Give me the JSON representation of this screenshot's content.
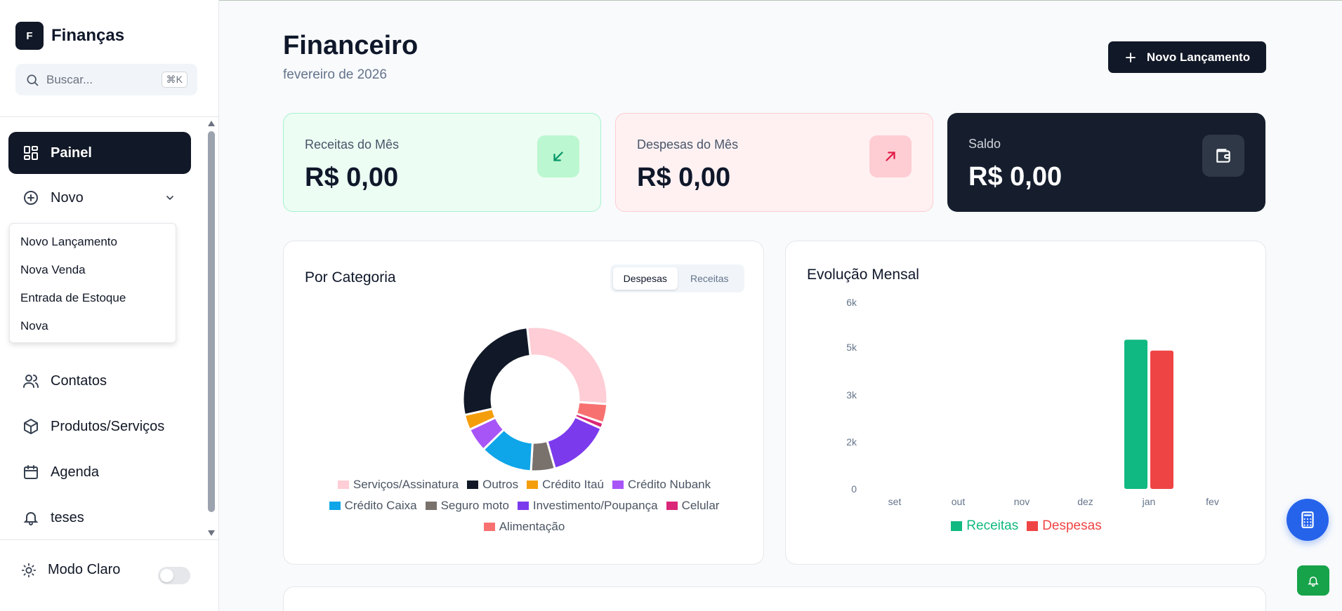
{
  "app": {
    "logo_letter": "F",
    "name": "Finanças"
  },
  "search": {
    "placeholder": "Buscar...",
    "shortcut": "⌘K"
  },
  "sidebar": {
    "items": [
      {
        "label": "Painel",
        "icon": "dashboard-icon",
        "active": true
      },
      {
        "label": "Novo",
        "icon": "plus-circle-icon",
        "expanded": true
      },
      {
        "label": "Contatos",
        "icon": "users-icon"
      },
      {
        "label": "Produtos/Serviços",
        "icon": "package-icon"
      },
      {
        "label": "Agenda",
        "icon": "calendar-icon"
      },
      {
        "label": "teses",
        "icon": "bell-icon"
      }
    ],
    "novo_menu": [
      "Novo Lançamento",
      "Nova Venda",
      "Entrada de Estoque",
      "Nova"
    ],
    "theme_label": "Modo Claro",
    "theme_toggle_on": false
  },
  "header": {
    "title": "Financeiro",
    "subtitle": "fevereiro de 2026",
    "new_button": "Novo Lançamento"
  },
  "cards": {
    "income": {
      "label": "Receitas do Mês",
      "value": "R$ 0,00",
      "icon": "arrow-down-left-icon",
      "color": "#059669"
    },
    "expense": {
      "label": "Despesas do Mês",
      "value": "R$ 0,00",
      "icon": "arrow-up-right-icon",
      "color": "#e11d48"
    },
    "balance": {
      "label": "Saldo",
      "value": "R$ 0,00",
      "icon": "wallet-icon"
    }
  },
  "category_panel": {
    "title": "Por Categoria",
    "tabs": [
      "Despesas",
      "Receitas"
    ],
    "active_tab": "Despesas"
  },
  "evolution_panel": {
    "title": "Evolução Mensal"
  },
  "chart_data": [
    {
      "type": "pie",
      "donut": true,
      "title": "Por Categoria",
      "slices": [
        {
          "label": "Serviços/Assinatura",
          "value": 26.0,
          "color": "#fecdd6"
        },
        {
          "label": "Alimentação",
          "value": 4.0,
          "color": "#f87171"
        },
        {
          "label": "Celular",
          "value": 1.2,
          "color": "#db2777"
        },
        {
          "label": "Investimento/Poupança",
          "value": 13.0,
          "color": "#7c3aed"
        },
        {
          "label": "Seguro moto",
          "value": 5.0,
          "color": "#78716c"
        },
        {
          "label": "Crédito Caixa",
          "value": 11.0,
          "color": "#0ea5e9"
        },
        {
          "label": "Crédito Nubank",
          "value": 5.0,
          "color": "#a855f7"
        },
        {
          "label": "Crédito Itaú",
          "value": 3.2,
          "color": "#f59e0b"
        },
        {
          "label": "Outros",
          "value": 25.0,
          "color": "#111827"
        }
      ],
      "legend_rows": [
        [
          "Serviços/Assinatura",
          "Outros",
          "Crédito Itaú",
          "Crédito Nubank"
        ],
        [
          "Crédito Caixa",
          "Seguro moto",
          "Investimento/Poupança",
          "Celular"
        ],
        [
          "Alimentação"
        ]
      ],
      "legend_placement": "bottom"
    },
    {
      "type": "bar",
      "title": "Evolução Mensal",
      "categories": [
        "set",
        "out",
        "nov",
        "dez",
        "jan",
        "fev"
      ],
      "series": [
        {
          "name": "Receitas",
          "values": [
            0,
            0,
            0,
            0,
            4800,
            0
          ],
          "color": "#10b981"
        },
        {
          "name": "Despesas",
          "values": [
            0,
            0,
            0,
            0,
            4450,
            0
          ],
          "color": "#ef4444"
        }
      ],
      "ytick_labels": [
        "0",
        "2k",
        "3k",
        "5k",
        "6k"
      ],
      "ylim": [
        0,
        6000
      ],
      "grid": false,
      "legend_placement": "bottom"
    }
  ]
}
